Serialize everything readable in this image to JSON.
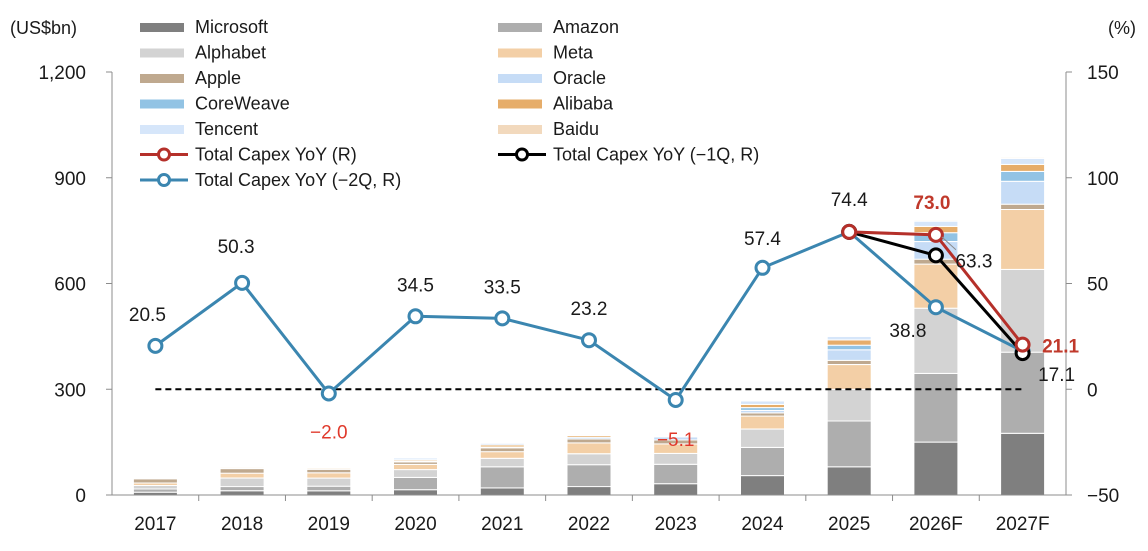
{
  "chart_data": {
    "type": "bar",
    "y_unit_left": "(US$bn)",
    "y_unit_right": "(%)",
    "categories": [
      "2017",
      "2018",
      "2019",
      "2020",
      "2021",
      "2022",
      "2023",
      "2024",
      "2025",
      "2026F",
      "2027F"
    ],
    "ylim_left": [
      0,
      1200
    ],
    "yticks_left": [
      "0",
      "300",
      "600",
      "900",
      "1,200"
    ],
    "yticks_left_values": [
      0,
      300,
      600,
      900,
      1200
    ],
    "ylim_right": [
      -50,
      150
    ],
    "yticks_right": [
      "−50",
      "0",
      "50",
      "100",
      "150"
    ],
    "yticks_right_values": [
      -50,
      0,
      50,
      100,
      150
    ],
    "baseline_right": 0,
    "stack_series": [
      {
        "name": "Microsoft",
        "color": "#7f7f7f",
        "values": [
          8,
          12,
          12,
          15,
          20,
          24,
          32,
          55,
          80,
          150,
          175
        ]
      },
      {
        "name": "Amazon",
        "color": "#aeaeae",
        "values": [
          9,
          12,
          13,
          35,
          60,
          62,
          55,
          80,
          130,
          195,
          230
        ]
      },
      {
        "name": "Alphabet",
        "color": "#d3d3d3",
        "values": [
          10,
          24,
          23,
          22,
          24,
          31,
          31,
          52,
          90,
          185,
          235
        ]
      },
      {
        "name": "Meta",
        "color": "#f3cfa6",
        "values": [
          7,
          14,
          15,
          15,
          19,
          31,
          27,
          37,
          70,
          125,
          170
        ]
      },
      {
        "name": "Apple",
        "color": "#bfa98f",
        "values": [
          12,
          13,
          10,
          7,
          11,
          11,
          11,
          9,
          12,
          14,
          15
        ]
      },
      {
        "name": "Oracle",
        "color": "#c6dcf6",
        "values": [
          1,
          2,
          2,
          2,
          2,
          5,
          9,
          7,
          30,
          50,
          65
        ]
      },
      {
        "name": "CoreWeave",
        "color": "#92c3e4",
        "values": [
          0,
          0,
          0,
          0,
          0,
          0,
          1,
          8,
          13,
          25,
          28
        ]
      },
      {
        "name": "Alibaba",
        "color": "#e6ad6a",
        "values": [
          2,
          3,
          3,
          4,
          6,
          5,
          3,
          9,
          15,
          18,
          20
        ]
      },
      {
        "name": "Tencent",
        "color": "#d6e6fa",
        "values": [
          1,
          2,
          2,
          5,
          5,
          3,
          3,
          10,
          10,
          15,
          17
        ]
      },
      {
        "name": "Baidu",
        "color": "#f2d9bd",
        "values": [
          1,
          1,
          1,
          1,
          1,
          1,
          1,
          2,
          2,
          3,
          3
        ]
      }
    ],
    "line_series": [
      {
        "name": "Total Capex YoY (R)",
        "color": "#b5302a",
        "x": [
          "2025",
          "2026F",
          "2027F"
        ],
        "values": [
          74.4,
          73.0,
          21.1
        ]
      },
      {
        "name": "Total Capex YoY (−1Q, R)",
        "color": "#000000",
        "x": [
          "2025",
          "2026F",
          "2027F"
        ],
        "values": [
          74.4,
          63.3,
          17.1
        ]
      },
      {
        "name": "Total Capex YoY (−2Q, R)",
        "color": "#3b86b0",
        "x": [
          "2017",
          "2018",
          "2019",
          "2020",
          "2021",
          "2022",
          "2023",
          "2024",
          "2025",
          "2026F",
          "2027F"
        ],
        "values": [
          20.5,
          50.3,
          -2.0,
          34.5,
          33.5,
          23.2,
          -5.1,
          57.4,
          74.4,
          38.8,
          18.0
        ]
      }
    ],
    "data_labels": [
      {
        "text": "20.5",
        "x": "2017",
        "value": 20.5,
        "color": "#1a1a1a",
        "bold": false
      },
      {
        "text": "50.3",
        "x": "2018",
        "value": 50.3,
        "color": "#1a1a1a",
        "bold": false
      },
      {
        "text": "−2.0",
        "x": "2019",
        "value": -2.0,
        "color": "#e0392b",
        "bold": false
      },
      {
        "text": "34.5",
        "x": "2020",
        "value": 34.5,
        "color": "#1a1a1a",
        "bold": false
      },
      {
        "text": "33.5",
        "x": "2021",
        "value": 33.5,
        "color": "#1a1a1a",
        "bold": false
      },
      {
        "text": "23.2",
        "x": "2022",
        "value": 23.2,
        "color": "#1a1a1a",
        "bold": false
      },
      {
        "text": "−5.1",
        "x": "2023",
        "value": -5.1,
        "color": "#e0392b",
        "bold": false
      },
      {
        "text": "57.4",
        "x": "2024",
        "value": 57.4,
        "color": "#1a1a1a",
        "bold": false
      },
      {
        "text": "74.4",
        "x": "2025",
        "value": 74.4,
        "color": "#1a1a1a",
        "bold": false
      },
      {
        "text": "73.0",
        "x": "2026F",
        "value": 73.0,
        "color": "#c0392b",
        "bold": true
      },
      {
        "text": "63.3",
        "x": "2026F",
        "value": 63.3,
        "color": "#1a1a1a",
        "bold": false
      },
      {
        "text": "38.8",
        "x": "2026F",
        "value": 38.8,
        "color": "#1a1a1a",
        "bold": false
      },
      {
        "text": "21.1",
        "x": "2027F",
        "value": 21.1,
        "color": "#c0392b",
        "bold": true
      },
      {
        "text": "17.1",
        "x": "2027F",
        "value": 17.1,
        "color": "#1a1a1a",
        "bold": false
      }
    ],
    "legend": [
      {
        "name": "Microsoft",
        "kind": "bar",
        "color": "#7f7f7f"
      },
      {
        "name": "Amazon",
        "kind": "bar",
        "color": "#aeaeae"
      },
      {
        "name": "Alphabet",
        "kind": "bar",
        "color": "#d3d3d3"
      },
      {
        "name": "Meta",
        "kind": "bar",
        "color": "#f3cfa6"
      },
      {
        "name": "Apple",
        "kind": "bar",
        "color": "#bfa98f"
      },
      {
        "name": "Oracle",
        "kind": "bar",
        "color": "#c6dcf6"
      },
      {
        "name": "CoreWeave",
        "kind": "bar",
        "color": "#92c3e4"
      },
      {
        "name": "Alibaba",
        "kind": "bar",
        "color": "#e6ad6a"
      },
      {
        "name": "Tencent",
        "kind": "bar",
        "color": "#d6e6fa"
      },
      {
        "name": "Baidu",
        "kind": "bar",
        "color": "#f2d9bd"
      },
      {
        "name": "Total Capex YoY (R)",
        "kind": "line",
        "color": "#b5302a"
      },
      {
        "name": "Total Capex YoY (−1Q, R)",
        "kind": "line",
        "color": "#000000"
      },
      {
        "name": "Total Capex YoY (−2Q, R)",
        "kind": "line",
        "color": "#3b86b0"
      }
    ],
    "legend_placement": "top-left",
    "grid": false
  }
}
